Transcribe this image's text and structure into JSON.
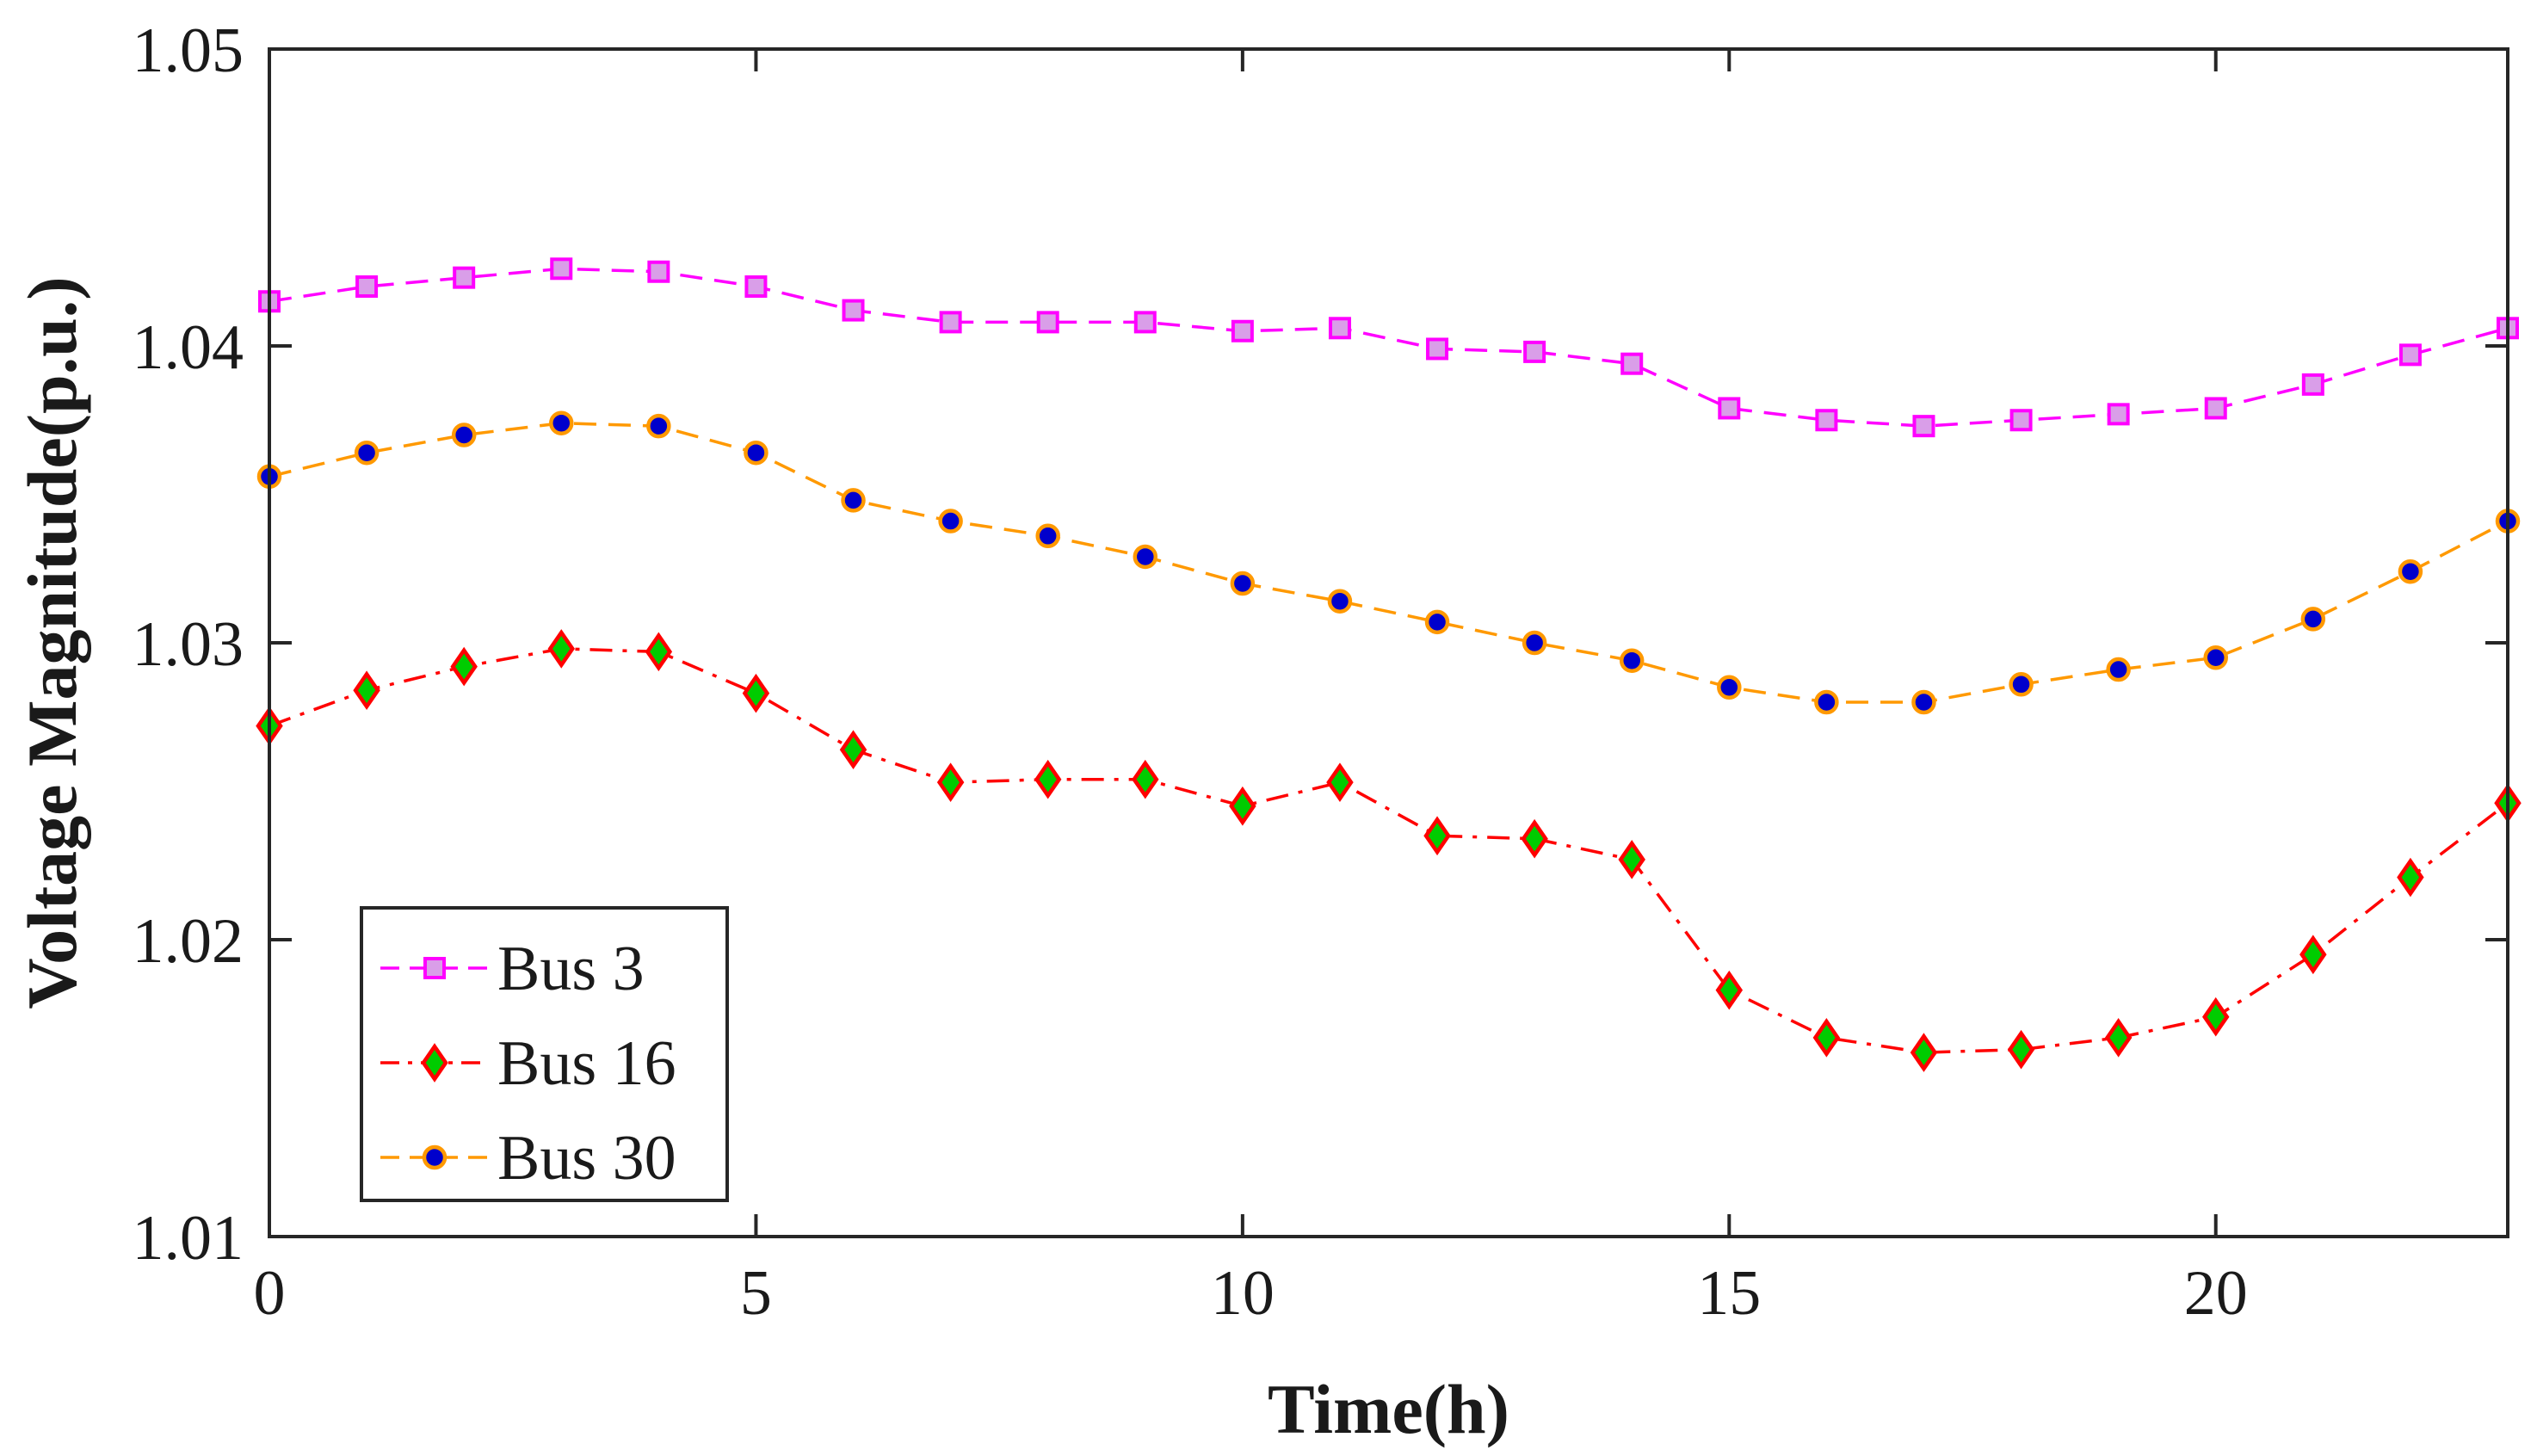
{
  "chart_data": {
    "type": "line",
    "title": "",
    "xlabel": "Time(h)",
    "ylabel": "Voltage Magnitude(p.u.)",
    "xlim": [
      0,
      23
    ],
    "ylim": [
      1.01,
      1.05
    ],
    "xticks": [
      0,
      5,
      10,
      15,
      20
    ],
    "yticks": [
      1.01,
      1.02,
      1.03,
      1.04,
      1.05
    ],
    "xtick_labels": [
      "0",
      "5",
      "10",
      "15",
      "20"
    ],
    "ytick_labels": [
      "1.01",
      "1.02",
      "1.03",
      "1.04",
      "1.05"
    ],
    "grid": false,
    "legend_position": "bottom-left",
    "x": [
      0,
      1,
      2,
      3,
      4,
      5,
      6,
      7,
      8,
      9,
      10,
      11,
      12,
      13,
      14,
      15,
      16,
      17,
      18,
      19,
      20,
      21,
      22,
      23
    ],
    "series": [
      {
        "name": "Bus 3",
        "marker": "square",
        "line_style": "dashed",
        "line_color": "#ff00ff",
        "marker_fill": "#d99ee8",
        "marker_edge": "#ff00ff",
        "values": [
          1.0415,
          1.042,
          1.0423,
          1.0426,
          1.0425,
          1.042,
          1.0412,
          1.0408,
          1.0408,
          1.0408,
          1.0405,
          1.0406,
          1.0399,
          1.0398,
          1.0394,
          1.0379,
          1.0375,
          1.0373,
          1.0375,
          1.0377,
          1.0379,
          1.0387,
          1.0397,
          1.0406
        ]
      },
      {
        "name": "Bus 16",
        "marker": "diamond",
        "line_style": "dashdot",
        "line_color": "#ff0000",
        "marker_fill": "#00cc00",
        "marker_edge": "#ff0000",
        "values": [
          1.0272,
          1.0284,
          1.0292,
          1.0298,
          1.0297,
          1.0283,
          1.0264,
          1.0253,
          1.0254,
          1.0254,
          1.0245,
          1.0253,
          1.0235,
          1.0234,
          1.0227,
          1.0183,
          1.0167,
          1.0162,
          1.0163,
          1.0167,
          1.0174,
          1.0195,
          1.0221,
          1.0246
        ]
      },
      {
        "name": "Bus 30",
        "marker": "circle",
        "line_style": "dashed",
        "line_color": "#ff9900",
        "marker_fill": "#0000cc",
        "marker_edge": "#ff9900",
        "values": [
          1.0356,
          1.0364,
          1.037,
          1.0374,
          1.0373,
          1.0364,
          1.0348,
          1.0341,
          1.0336,
          1.0329,
          1.032,
          1.0314,
          1.0307,
          1.03,
          1.0294,
          1.0285,
          1.028,
          1.028,
          1.0286,
          1.0291,
          1.0295,
          1.0308,
          1.0324,
          1.0341
        ]
      }
    ]
  }
}
